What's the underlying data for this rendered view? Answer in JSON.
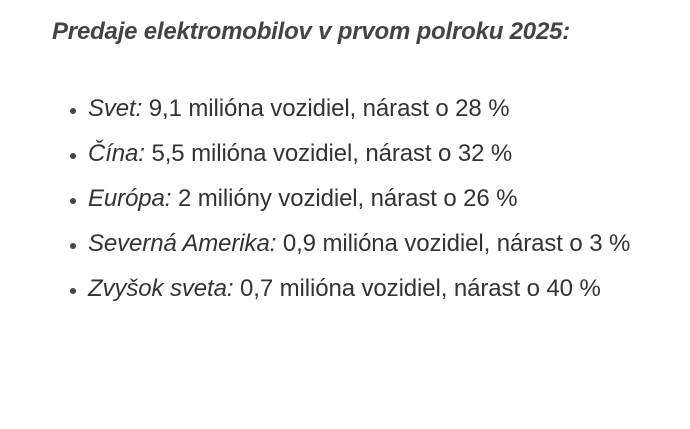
{
  "header": {
    "title": "Predaje elektromobilov v prvom polroku 2025:"
  },
  "list": {
    "items": [
      {
        "label": "Svet:",
        "text": "9,1 milióna vozidiel, nárast o 28 %"
      },
      {
        "label": "Čína:",
        "text": "5,5 milióna vozidiel, nárast o 32 %"
      },
      {
        "label": "Európa:",
        "text": "2 milióny vozidiel, nárast o 26 %"
      },
      {
        "label": "Severná Amerika:",
        "text": "0,9 milióna vozidiel, nárast o 3 %"
      },
      {
        "label": "Zvyšok sveta:",
        "text": "0,7 milióna vozidiel, nárast o 40 %"
      }
    ]
  }
}
